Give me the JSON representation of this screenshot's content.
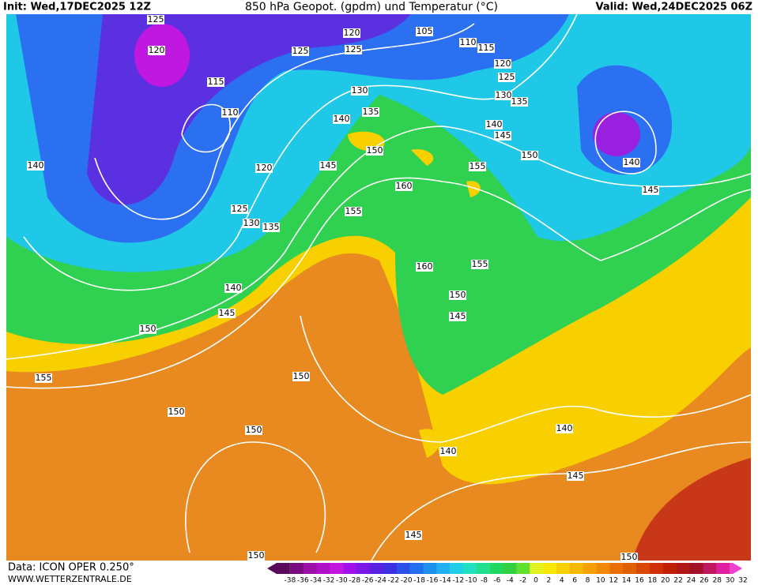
{
  "header": {
    "init": "Init: Wed,17DEC2025 12Z",
    "title": "850 hPa Geopot. (gpdm) und Temperatur (°C)",
    "valid": "Valid: Wed,24DEC2025 06Z"
  },
  "footer": {
    "data": "Data: ICON OPER 0.250°",
    "site": "WWW.WETTERZENTRALE.DE"
  },
  "legend": {
    "labels": [
      "-38",
      "-36",
      "-34",
      "-32",
      "-30",
      "-28",
      "-26",
      "-24",
      "-22",
      "-20",
      "-18",
      "-16",
      "-14",
      "-12",
      "-10",
      "-8",
      "-6",
      "-4",
      "-2",
      "0",
      "2",
      "4",
      "6",
      "8",
      "10",
      "12",
      "14",
      "16",
      "18",
      "20",
      "22",
      "24",
      "26",
      "28",
      "30",
      "32"
    ],
    "colors": [
      "#5a0a5a",
      "#7a0a80",
      "#9a10a8",
      "#b010c8",
      "#c018e0",
      "#a010e8",
      "#7a18e8",
      "#5a20e0",
      "#3a30e0",
      "#2a50e8",
      "#2070f0",
      "#2090f0",
      "#20b0f0",
      "#20d0e8",
      "#20e0c0",
      "#20e090",
      "#20d860",
      "#30d040",
      "#60e030",
      "#e0f020",
      "#f8e800",
      "#f8d000",
      "#f8b800",
      "#f8a000",
      "#f08800",
      "#e87000",
      "#e06000",
      "#d84800",
      "#d03000",
      "#c02000",
      "#b01818",
      "#a01028",
      "#c01860",
      "#e020a0",
      "#f040d0"
    ]
  },
  "contour_labels": [
    "125",
    "120",
    "105",
    "110",
    "115",
    "120",
    "125",
    "125",
    "120",
    "115",
    "130",
    "125",
    "135",
    "130",
    "135",
    "110",
    "140",
    "140",
    "145",
    "150",
    "150",
    "140",
    "145",
    "155",
    "120",
    "160",
    "145",
    "125",
    "155",
    "130",
    "135",
    "160",
    "155",
    "140",
    "150",
    "145",
    "145",
    "150",
    "155",
    "150",
    "150",
    "140",
    "150",
    "140",
    "145",
    "145",
    "150",
    "150",
    "140"
  ]
}
